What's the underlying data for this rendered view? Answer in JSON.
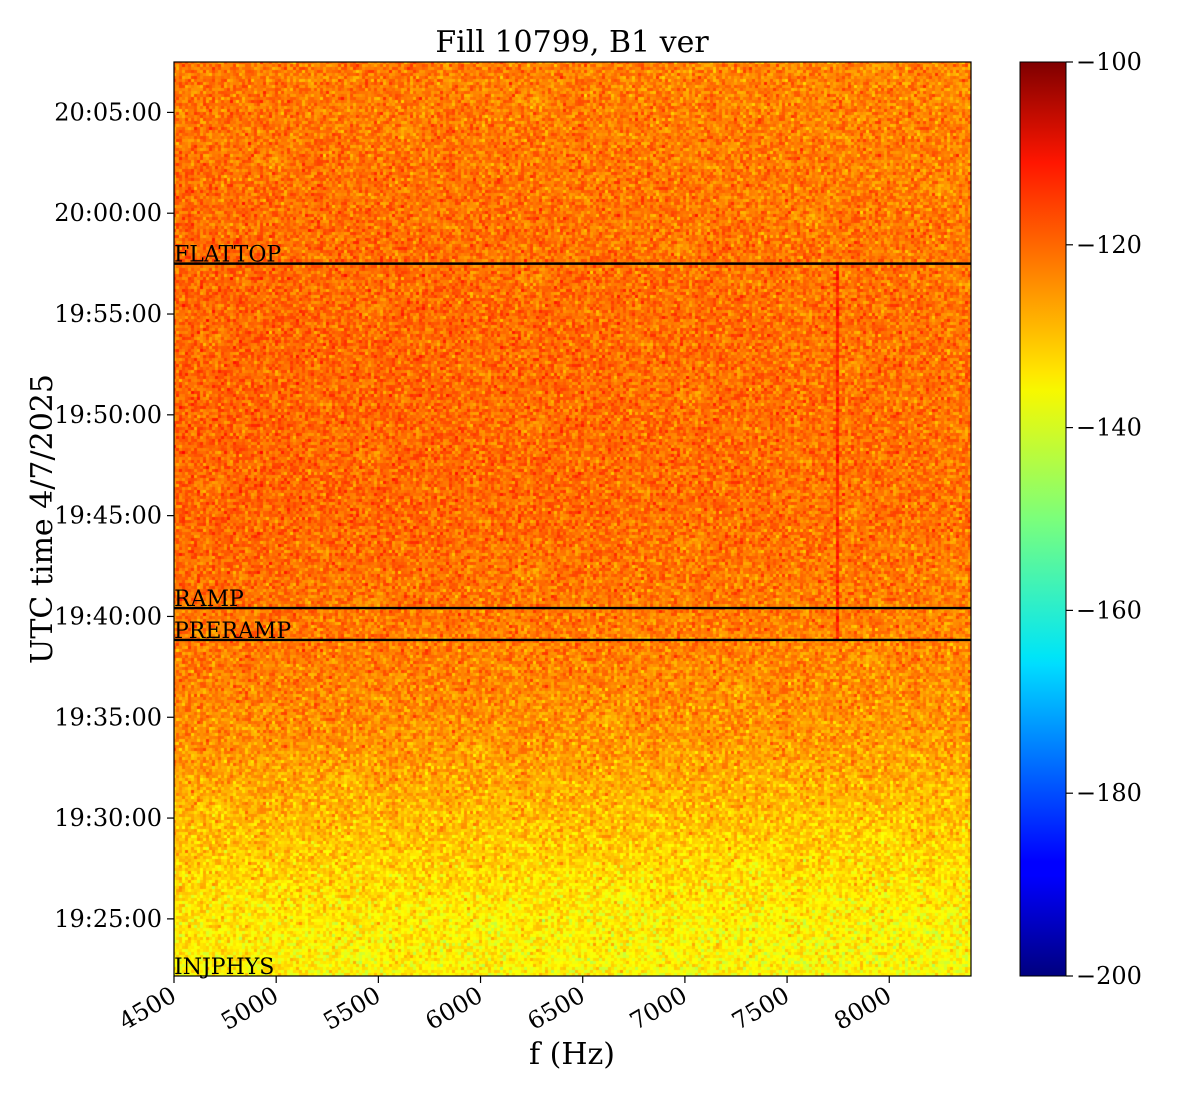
{
  "chart_data": {
    "type": "heatmap",
    "title": "Fill 10799, B1 ver",
    "xlabel": "f (Hz)",
    "ylabel": "UTC time 4/7/2025",
    "xlim": [
      4500,
      8400
    ],
    "ylim": [
      "19:22:10",
      "20:07:30"
    ],
    "x_ticks": [
      "4500",
      "5000",
      "5500",
      "6000",
      "6500",
      "7000",
      "7500",
      "8000"
    ],
    "y_ticks": [
      "19:25:00",
      "19:30:00",
      "19:35:00",
      "19:40:00",
      "19:45:00",
      "19:50:00",
      "19:55:00",
      "20:00:00",
      "20:05:00"
    ],
    "colorbar": {
      "colormap": "jet",
      "range": [
        -200,
        -100
      ],
      "ticks": [
        "−200",
        "−180",
        "−160",
        "−140",
        "−120",
        "−100"
      ]
    },
    "beam_mode_markers": [
      {
        "label": "FLATTOP",
        "time": "19:57:30"
      },
      {
        "label": "RAMP",
        "time": "19:40:25"
      },
      {
        "label": "PRERAMP",
        "time": "19:38:50"
      },
      {
        "label": "INJPHYS",
        "time": "19:22:10"
      }
    ],
    "intensity_profile_db": [
      {
        "time": "19:22:10",
        "level": -137
      },
      {
        "time": "19:25:00",
        "level": -136
      },
      {
        "time": "19:28:00",
        "level": -133
      },
      {
        "time": "19:31:00",
        "level": -130
      },
      {
        "time": "19:34:00",
        "level": -127
      },
      {
        "time": "19:38:00",
        "level": -125
      },
      {
        "time": "19:45:00",
        "level": -123
      },
      {
        "time": "19:55:00",
        "level": -123
      },
      {
        "time": "20:07:30",
        "level": -125
      }
    ],
    "spectral_line": {
      "freq": 7750,
      "from": "19:38:50",
      "to": "19:57:30",
      "level": -116
    },
    "grid": false
  }
}
